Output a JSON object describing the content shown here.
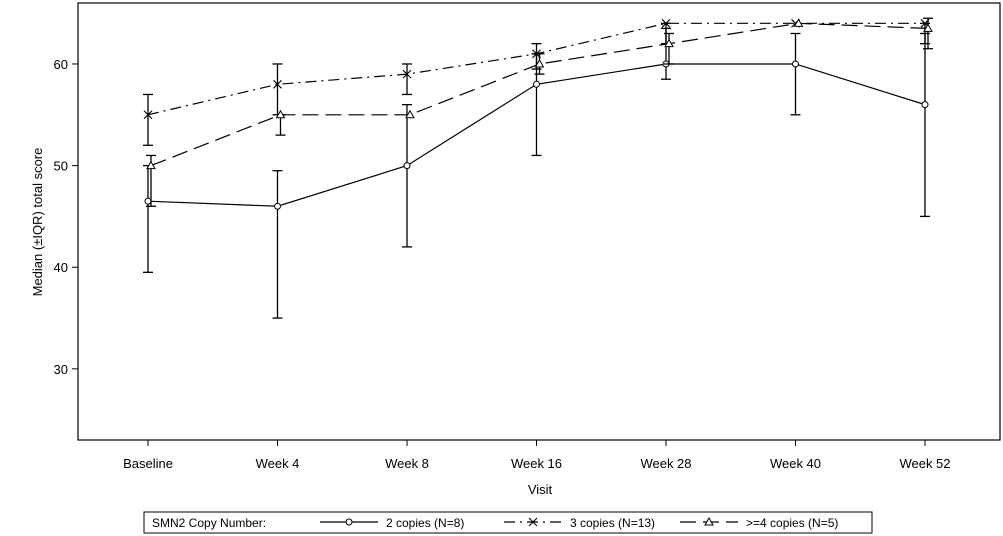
{
  "chart_data": {
    "type": "line",
    "xlabel": "Visit",
    "ylabel": "Median (±IQR) total score",
    "categories": [
      "Baseline",
      "Week 4",
      "Week 8",
      "Week 16",
      "Week 28",
      "Week 40",
      "Week 52"
    ],
    "y_ticks": [
      30,
      40,
      50,
      60
    ],
    "ylim": [
      23,
      66
    ],
    "grid": false,
    "legend": {
      "title": "SMN2 Copy Number:",
      "placement": "bottom"
    },
    "series": [
      {
        "name": "2 copies (N=8)",
        "marker": "circle",
        "line_style": "solid",
        "color": "#000000",
        "values": [
          46.5,
          46,
          50,
          58,
          60,
          60,
          56
        ],
        "q1": [
          39.5,
          35,
          42,
          51,
          58.5,
          55,
          45
        ],
        "q3": [
          50,
          49.5,
          56,
          61,
          63.5,
          63,
          63
        ]
      },
      {
        "name": "3 copies (N=13)",
        "marker": "x",
        "line_style": "dash-dot",
        "color": "#000000",
        "values": [
          55,
          58,
          59,
          61,
          64,
          64,
          64
        ],
        "q1": [
          52,
          55,
          57,
          59.5,
          62,
          64,
          62
        ],
        "q3": [
          57,
          60,
          60,
          62,
          64,
          64,
          64
        ]
      },
      {
        "name": ">=4 copies (N=5)",
        "marker": "triangle",
        "line_style": "dash",
        "color": "#000000",
        "values": [
          50,
          55,
          55,
          60,
          62,
          64,
          63.5
        ],
        "q1": [
          46,
          53,
          55,
          59,
          60,
          64,
          61.5
        ],
        "q3": [
          51,
          55,
          55,
          61,
          63,
          64,
          64.5
        ]
      }
    ]
  }
}
